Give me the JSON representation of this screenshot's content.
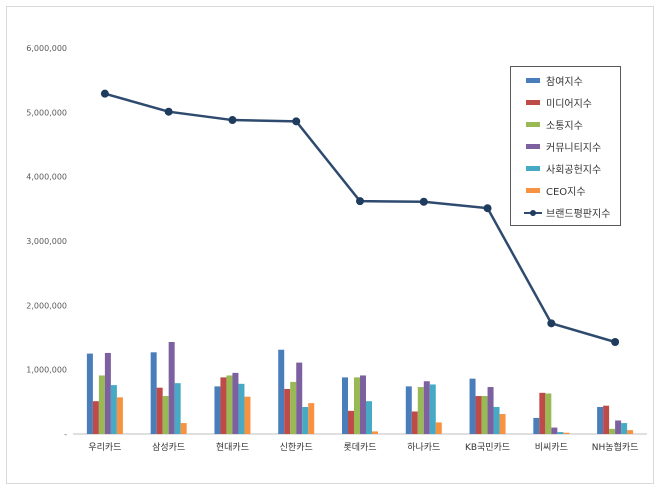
{
  "chart_data": {
    "type": "bar",
    "categories": [
      "우리카드",
      "삼성카드",
      "현대카드",
      "신한카드",
      "롯데카드",
      "하나카드",
      "KB국민카드",
      "비씨카드",
      "NH농협카드"
    ],
    "ylim": [
      0,
      6000000
    ],
    "yticks": [
      "-",
      "1,000,000",
      "2,000,000",
      "3,000,000",
      "4,000,000",
      "5,000,000",
      "6,000,000"
    ],
    "ytick_values": [
      0,
      1000000,
      2000000,
      3000000,
      4000000,
      5000000,
      6000000
    ],
    "grid": false,
    "legend_position": "top-right",
    "series": [
      {
        "name": "참여지수",
        "type": "bar",
        "color": "#4a7ebb",
        "values": [
          1250000,
          1270000,
          740000,
          1310000,
          880000,
          740000,
          860000,
          250000,
          420000
        ]
      },
      {
        "name": "미디어지수",
        "type": "bar",
        "color": "#be4b48",
        "values": [
          510000,
          720000,
          880000,
          700000,
          360000,
          350000,
          590000,
          640000,
          440000
        ]
      },
      {
        "name": "소통지수",
        "type": "bar",
        "color": "#98b954",
        "values": [
          910000,
          590000,
          910000,
          810000,
          880000,
          730000,
          590000,
          630000,
          80000
        ]
      },
      {
        "name": "커뮤니티지수",
        "type": "bar",
        "color": "#7d60a0",
        "values": [
          1260000,
          1430000,
          950000,
          1110000,
          910000,
          820000,
          730000,
          100000,
          210000
        ]
      },
      {
        "name": "사회공헌지수",
        "type": "bar",
        "color": "#46aac5",
        "values": [
          760000,
          790000,
          780000,
          420000,
          510000,
          770000,
          420000,
          30000,
          170000
        ]
      },
      {
        "name": "CEO지수",
        "type": "bar",
        "color": "#f69240",
        "values": [
          570000,
          170000,
          580000,
          480000,
          40000,
          180000,
          310000,
          20000,
          60000
        ]
      },
      {
        "name": "브랜드평판지수",
        "type": "line",
        "color": "#2e4a6e",
        "values": [
          5290000,
          5010000,
          4880000,
          4860000,
          3620000,
          3610000,
          3510000,
          1720000,
          1430000
        ]
      }
    ]
  }
}
